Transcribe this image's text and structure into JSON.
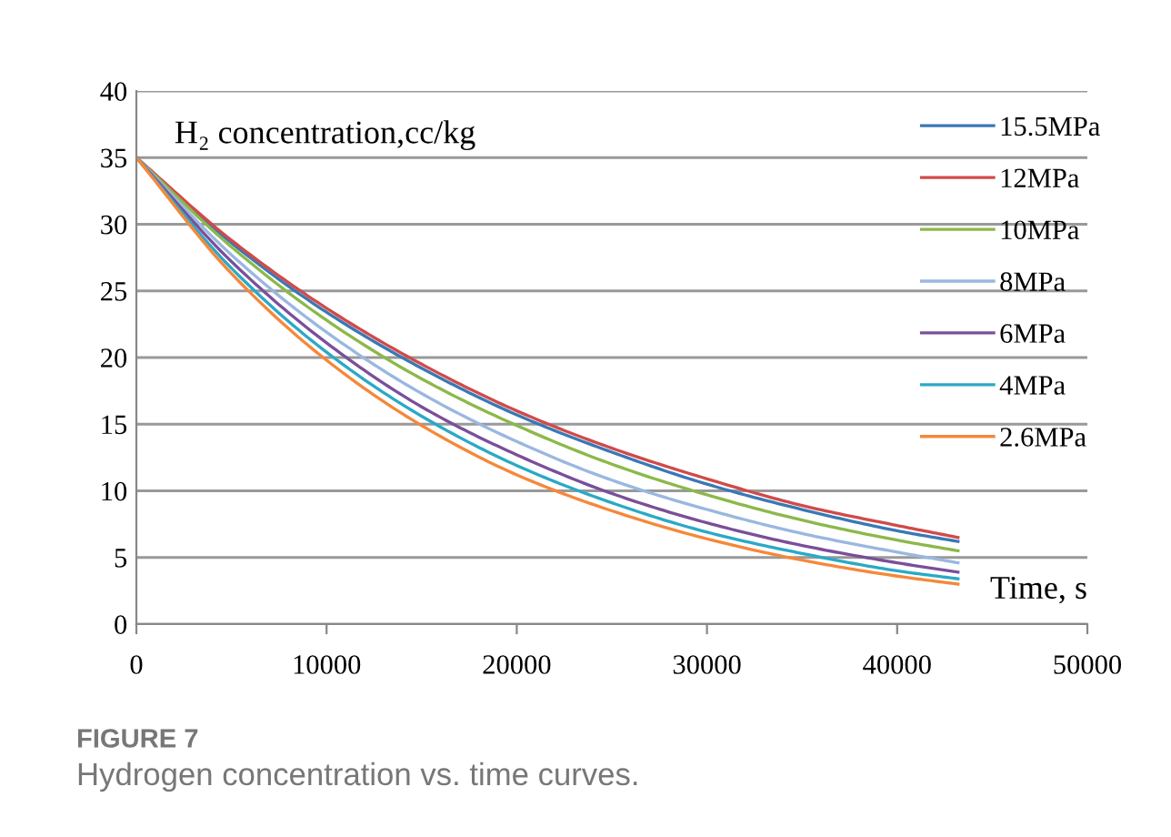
{
  "chart_data": {
    "type": "line",
    "ylabel": "H₂ concentration,cc/kg",
    "xlabel": "Time, s",
    "x": [
      0,
      5000,
      10000,
      15000,
      20000,
      25000,
      30000,
      35000,
      40000,
      43200
    ],
    "series": [
      {
        "name": "15.5MPa",
        "color": "#3a78b5",
        "values": [
          35,
          28.6,
          23.4,
          19.2,
          15.7,
          12.9,
          10.5,
          8.6,
          7.0,
          6.2
        ]
      },
      {
        "name": "12MPa",
        "color": "#d04a4a",
        "values": [
          35,
          28.8,
          23.7,
          19.5,
          16.0,
          13.2,
          10.9,
          8.9,
          7.4,
          6.5
        ]
      },
      {
        "name": "10MPa",
        "color": "#8cb84a",
        "values": [
          35,
          28.3,
          22.8,
          18.4,
          14.9,
          12.0,
          9.7,
          7.8,
          6.3,
          5.5
        ]
      },
      {
        "name": "8MPa",
        "color": "#9ab7e0",
        "values": [
          35,
          27.7,
          21.9,
          17.3,
          13.7,
          10.8,
          8.6,
          6.8,
          5.4,
          4.6
        ]
      },
      {
        "name": "6MPa",
        "color": "#7a4f9a",
        "values": [
          35,
          27.2,
          21.1,
          16.3,
          12.7,
          9.8,
          7.6,
          5.9,
          4.6,
          3.9
        ]
      },
      {
        "name": "4MPa",
        "color": "#2aa9c6",
        "values": [
          35,
          26.7,
          20.4,
          15.6,
          11.9,
          9.1,
          6.9,
          5.3,
          4.0,
          3.4
        ]
      },
      {
        "name": "2.6MPa",
        "color": "#f5883a",
        "values": [
          35,
          26.3,
          19.8,
          14.9,
          11.2,
          8.5,
          6.4,
          4.8,
          3.6,
          3.0
        ]
      }
    ],
    "xlim": [
      0,
      50000
    ],
    "xticks": [
      0,
      10000,
      20000,
      30000,
      40000,
      50000
    ],
    "ylim": [
      0,
      40
    ],
    "yticks": [
      0,
      5,
      10,
      15,
      20,
      25,
      30,
      35,
      40
    ],
    "grid": "y",
    "legend": "top right",
    "marker": "none",
    "line_style": "solid",
    "annotations": [
      "FIGURE 7",
      "Hydrogen concentration vs. time curves."
    ]
  }
}
